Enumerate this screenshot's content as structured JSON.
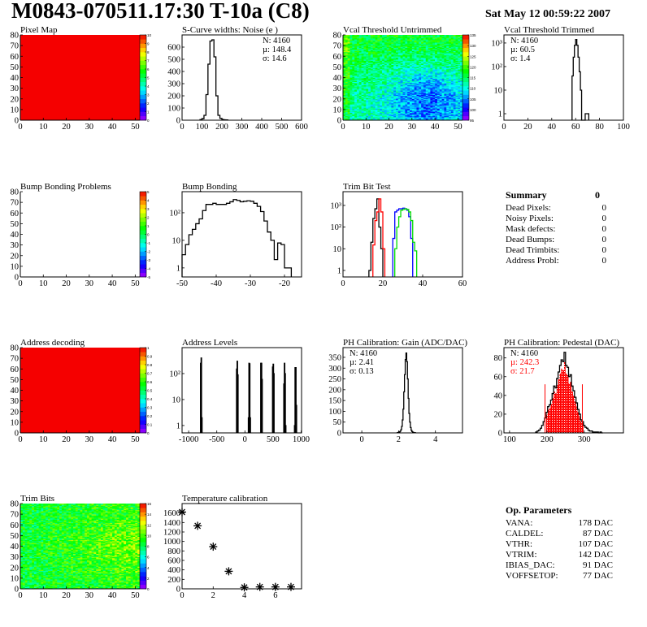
{
  "header": {
    "title": "M0843-070511.17:30 T-10a (C8)",
    "date": "Sat May 12 00:59:22 2007"
  },
  "chart_data": [
    {
      "id": "pixel-map",
      "title": "Pixel Map",
      "type": "heatmap",
      "xlim": [
        0,
        52
      ],
      "ylim": [
        0,
        80
      ],
      "zlim": [
        0,
        10
      ],
      "xticks": [
        0,
        10,
        20,
        30,
        40,
        50
      ],
      "yticks": [
        0,
        10,
        20,
        30,
        40,
        50,
        60,
        70,
        80
      ],
      "zticks": [
        0,
        1,
        2,
        3,
        4,
        5,
        6,
        7,
        8,
        9,
        10
      ],
      "pattern": "uniform",
      "value": 10
    },
    {
      "id": "s-curve-widths",
      "title": "S-Curve widths: Noise (e )",
      "type": "bar",
      "xlim": [
        0,
        600
      ],
      "ylim": [
        0,
        700
      ],
      "log_y": false,
      "xticks": [
        0,
        100,
        200,
        300,
        400,
        500,
        600
      ],
      "yticks": [
        0,
        100,
        200,
        300,
        400,
        500,
        600
      ],
      "stats": [
        "N: 4160",
        "µ: 148.4",
        "σ: 14.6"
      ],
      "stats_colors": [
        "#000000",
        "#000000",
        "#000000"
      ],
      "stats_pos": "top-right",
      "bin_start": 90,
      "bin_width": 10,
      "counts": [
        5,
        12,
        40,
        210,
        460,
        650,
        660,
        520,
        200,
        40,
        15,
        6,
        3,
        2
      ],
      "color": "#000000"
    },
    {
      "id": "vcal-threshold-untrimmed",
      "title": "Vcal Threshold Untrimmed",
      "type": "heatmap",
      "xlim": [
        0,
        52
      ],
      "ylim": [
        0,
        80
      ],
      "zlim": [
        95,
        135
      ],
      "xticks": [
        0,
        10,
        20,
        30,
        40,
        50
      ],
      "yticks": [
        0,
        10,
        20,
        30,
        40,
        50,
        60,
        70,
        80
      ],
      "zticks": [
        95,
        100,
        105,
        110,
        115,
        120,
        125,
        130,
        135
      ],
      "pattern": "gradient",
      "value": 112
    },
    {
      "id": "vcal-threshold-trimmed",
      "title": "Vcal Threshold Trimmed",
      "type": "bar",
      "xlim": [
        0,
        100
      ],
      "ylim": [
        0.53,
        2200
      ],
      "log_y": true,
      "xticks": [
        0,
        20,
        40,
        60,
        80,
        100
      ],
      "yticks": [
        1,
        10,
        100,
        1000
      ],
      "stats": [
        "N: 4160",
        "µ: 60.5",
        "σ:  1.4"
      ],
      "stats_colors": [
        "#000000",
        "#000000",
        "#000000"
      ],
      "stats_pos": "top-left",
      "bin_start": 57,
      "bin_width": 1,
      "counts": [
        40,
        250,
        800,
        1400,
        800,
        250,
        60,
        10,
        0,
        0,
        0,
        1,
        1,
        1
      ],
      "color": "#000000"
    },
    {
      "id": "bump-bonding-problems",
      "title": "Bump Bonding Problems",
      "type": "heatmap",
      "xlim": [
        0,
        52
      ],
      "ylim": [
        0,
        80
      ],
      "zlim": [
        -5,
        5
      ],
      "xticks": [
        0,
        10,
        20,
        30,
        40,
        50
      ],
      "yticks": [
        0,
        10,
        20,
        30,
        40,
        50,
        60,
        70,
        80
      ],
      "zticks": [
        -5,
        -4,
        -3,
        -2,
        -1,
        0,
        1,
        2,
        3,
        4,
        5
      ],
      "pattern": "empty"
    },
    {
      "id": "bump-bonding",
      "title": "Bump Bonding",
      "type": "bar",
      "xlim": [
        -50,
        -15
      ],
      "ylim": [
        0.47,
        580
      ],
      "log_y": true,
      "xticks": [
        -50,
        -40,
        -30,
        -20
      ],
      "yticks": [
        1,
        10,
        100
      ],
      "bin_start": -50,
      "bin_width": 1,
      "counts": [
        3,
        7,
        16,
        25,
        40,
        60,
        120,
        200,
        200,
        220,
        200,
        200,
        200,
        220,
        250,
        300,
        280,
        250,
        260,
        270,
        260,
        220,
        170,
        110,
        50,
        20,
        10,
        2,
        8,
        7,
        1,
        1
      ],
      "color": "#000000"
    },
    {
      "id": "trim-bit-test",
      "title": "Trim Bit Test",
      "type": "bar",
      "xlim": [
        0,
        60
      ],
      "ylim": [
        0.5,
        4300
      ],
      "log_y": true,
      "xticks": [
        0,
        20,
        40,
        60
      ],
      "yticks": [
        1,
        10,
        100,
        1000
      ],
      "series": [
        {
          "color": "#000000",
          "bin_start": 13,
          "bin_width": 1,
          "counts": [
            1,
            20,
            250,
            700,
            2000,
            100,
            10
          ]
        },
        {
          "color": "#ff0000",
          "bin_start": 15,
          "bin_width": 1,
          "counts": [
            15,
            200,
            500,
            2000,
            500,
            10
          ]
        },
        {
          "color": "#0000ff",
          "bin_start": 25,
          "bin_width": 1,
          "counts": [
            30,
            500,
            600,
            700,
            700,
            750,
            700,
            600,
            300,
            30
          ]
        },
        {
          "color": "#00dd00",
          "bin_start": 26,
          "bin_width": 1,
          "counts": [
            10,
            100,
            300,
            600,
            650,
            700,
            650,
            500,
            200,
            20,
            8
          ]
        }
      ]
    },
    {
      "id": "address-decoding",
      "title": "Address decoding",
      "type": "heatmap",
      "xlim": [
        0,
        52
      ],
      "ylim": [
        0,
        80
      ],
      "zlim": [
        0,
        1
      ],
      "xticks": [
        0,
        10,
        20,
        30,
        40,
        50
      ],
      "yticks": [
        0,
        10,
        20,
        30,
        40,
        50,
        60,
        70,
        80
      ],
      "zticks": [
        0,
        0.1,
        0.2,
        0.3,
        0.4,
        0.5,
        0.6,
        0.7,
        0.8,
        0.9,
        1
      ],
      "pattern": "uniform",
      "value": 1
    },
    {
      "id": "address-levels",
      "title": "Address Levels",
      "type": "bar",
      "xlim": [
        -1117,
        1007
      ],
      "ylim": [
        0.52,
        1000
      ],
      "log_y": true,
      "xticks": [
        -1000,
        -500,
        0,
        500,
        1000
      ],
      "yticks": [
        1,
        10,
        100
      ],
      "bin_width": 10,
      "color": "#000000",
      "bins": [
        [
          -790,
          250
        ],
        [
          -780,
          400
        ],
        [
          -770,
          2
        ],
        [
          -150,
          150
        ],
        [
          -140,
          300
        ],
        [
          -130,
          90
        ],
        [
          60,
          2
        ],
        [
          70,
          250
        ],
        [
          80,
          240
        ],
        [
          90,
          2
        ],
        [
          280,
          250
        ],
        [
          290,
          250
        ],
        [
          300,
          60
        ],
        [
          490,
          180
        ],
        [
          500,
          230
        ],
        [
          510,
          100
        ],
        [
          690,
          40
        ],
        [
          700,
          250
        ],
        [
          710,
          100
        ],
        [
          720,
          1
        ],
        [
          880,
          1
        ],
        [
          890,
          170
        ],
        [
          900,
          170
        ],
        [
          910,
          6
        ]
      ]
    },
    {
      "id": "ph-calibration-gain",
      "title": "PH Calibration: Gain (ADC/DAC)",
      "type": "bar",
      "xlim": [
        -1.02,
        5.47
      ],
      "ylim": [
        0,
        395
      ],
      "log_y": false,
      "xticks": [
        0,
        2,
        4
      ],
      "yticks": [
        0,
        50,
        100,
        150,
        200,
        250,
        300,
        350
      ],
      "stats": [
        "N: 4160",
        "µ: 2.41",
        "σ: 0.13"
      ],
      "stats_colors": [
        "#000000",
        "#000000",
        "#000000"
      ],
      "stats_pos": "top-left",
      "bin_start": 1.92,
      "bin_width": 0.04,
      "counts": [
        1,
        2,
        3,
        5,
        8,
        15,
        30,
        60,
        110,
        190,
        270,
        340,
        370,
        330,
        250,
        160,
        90,
        50,
        25,
        12,
        6,
        3,
        2,
        1,
        1
      ],
      "color": "#000000"
    },
    {
      "id": "ph-calibration-pedestal",
      "title": "PH Calibration: Pedestal (DAC)",
      "type": "bar",
      "xlim": [
        85,
        405
      ],
      "ylim": [
        0,
        91
      ],
      "log_y": false,
      "xticks": [
        100,
        200,
        300
      ],
      "yticks": [
        0,
        20,
        40,
        60,
        80
      ],
      "stats": [
        "N: 4160",
        "µ: 242.3",
        "σ: 21.7"
      ],
      "stats_colors": [
        "#000000",
        "#ff0000",
        "#ff0000"
      ],
      "stats_pos": "top-left",
      "bin_start": 170,
      "bin_width": 4,
      "counts": [
        1,
        2,
        3,
        5,
        8,
        12,
        16,
        22,
        28,
        30,
        35,
        42,
        50,
        48,
        58,
        65,
        72,
        78,
        76,
        86,
        72,
        70,
        60,
        62,
        50,
        45,
        38,
        32,
        25,
        20,
        14,
        12,
        8,
        6,
        5,
        3,
        2,
        2,
        1,
        1,
        1,
        1,
        0,
        1,
        0
      ],
      "color": "#000000",
      "fit_range": [
        195,
        295
      ],
      "fit_color": "#ff0000"
    },
    {
      "id": "trim-bits",
      "title": "Trim Bits",
      "type": "heatmap",
      "xlim": [
        0,
        52
      ],
      "ylim": [
        0,
        80
      ],
      "zlim": [
        0,
        16
      ],
      "xticks": [
        0,
        10,
        20,
        30,
        40,
        50
      ],
      "yticks": [
        0,
        10,
        20,
        30,
        40,
        50,
        60,
        70,
        80
      ],
      "zticks": [
        0,
        2,
        4,
        6,
        8,
        10,
        12,
        14,
        16
      ],
      "pattern": "noise",
      "value": 10
    },
    {
      "id": "temperature-calibration",
      "title": "Temperature calibration",
      "type": "scatter",
      "xlim": [
        0,
        7.68
      ],
      "ylim": [
        0,
        1800
      ],
      "xticks": [
        0,
        2,
        4,
        6
      ],
      "yticks": [
        0,
        200,
        400,
        600,
        800,
        1000,
        1200,
        1400,
        1600
      ],
      "x": [
        0,
        1,
        2,
        3,
        4,
        5,
        6,
        7
      ],
      "y": [
        1620,
        1330,
        890,
        370,
        30,
        40,
        40,
        40
      ],
      "marker": "asterisk"
    }
  ],
  "summary": {
    "title": "Summary",
    "total": "0",
    "rows": [
      {
        "label": "Dead Pixels:",
        "value": "0"
      },
      {
        "label": "Noisy Pixels:",
        "value": "0"
      },
      {
        "label": "Mask defects:",
        "value": "0"
      },
      {
        "label": "Dead Bumps:",
        "value": "0"
      },
      {
        "label": "Dead Trimbits:",
        "value": "0"
      },
      {
        "label": "Address Probl:",
        "value": "0"
      }
    ]
  },
  "op_parameters": {
    "title": "Op. Parameters",
    "rows": [
      {
        "label": "VANA:",
        "value": "178 DAC"
      },
      {
        "label": "CALDEL:",
        "value": "87 DAC"
      },
      {
        "label": "VTHR:",
        "value": "107 DAC"
      },
      {
        "label": "VTRIM:",
        "value": "142 DAC"
      },
      {
        "label": "IBIAS_DAC:",
        "value": "91 DAC"
      },
      {
        "label": "VOFFSETOP:",
        "value": "77 DAC"
      }
    ]
  }
}
